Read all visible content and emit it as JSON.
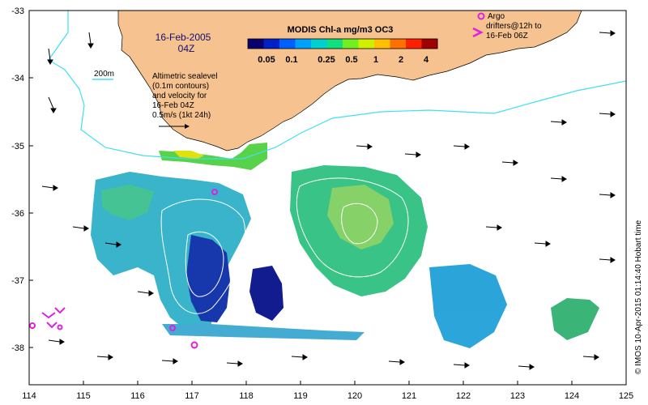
{
  "date_title": "16-Feb-2005",
  "time_title": "04Z",
  "colorbar": {
    "title": "MODIS Chl-a mg/m3 OC3",
    "ticks": [
      "0.05",
      "0.1",
      "0.25",
      "0.5",
      "1",
      "2",
      "4"
    ],
    "colors": [
      "#08006e",
      "#0020c8",
      "#0060ff",
      "#00a0ff",
      "#00d0d0",
      "#10e080",
      "#70f020",
      "#d0f000",
      "#ffc000",
      "#ff7000",
      "#ff2000",
      "#a00000"
    ]
  },
  "isobath_label": "200m",
  "legend_text": [
    "Altimetric sealevel",
    "(0.1m contours)",
    "and velocity for",
    "16-Feb 04Z",
    "0.5m/s (1kt 24h)"
  ],
  "argo_legend": [
    "Argo",
    "drifters@12h to",
    "16-Feb 06Z"
  ],
  "x_ticks": [
    "114",
    "115",
    "116",
    "117",
    "118",
    "119",
    "120",
    "121",
    "122",
    "123",
    "124",
    "125"
  ],
  "y_ticks": [
    "-33",
    "-34",
    "-35",
    "-36",
    "-37",
    "-38"
  ],
  "credit": "© IMOS 10-Apr-2015 01:14:40 Hobart time",
  "colors": {
    "land": "#f5c290",
    "isobath": "#40e0f0",
    "argo": "#e020e0",
    "contour": "#ffffff"
  },
  "icons": [
    "argo-circle-icon",
    "argo-arrow-icon",
    "velocity-arrow-icon"
  ]
}
